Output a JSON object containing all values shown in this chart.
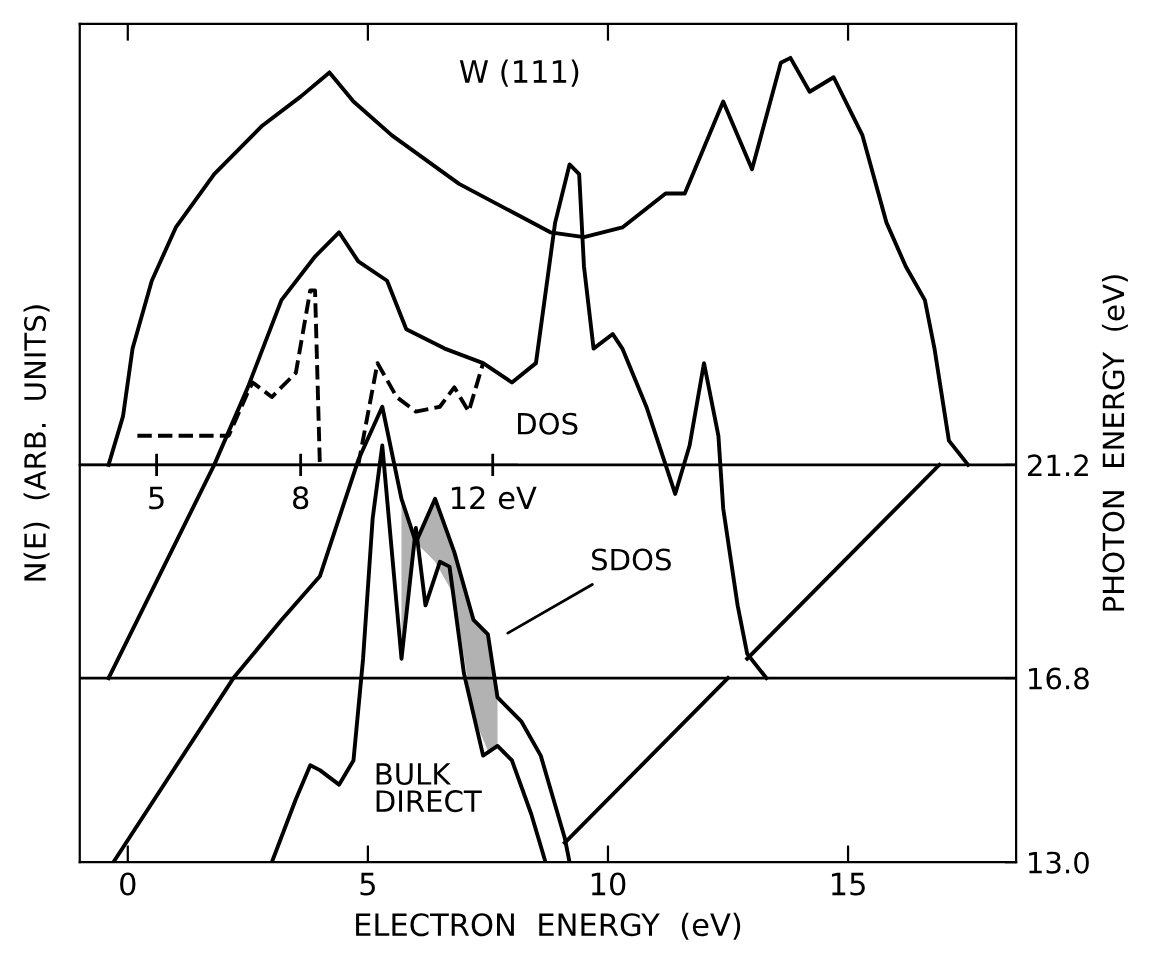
{
  "chart_data": {
    "type": "line",
    "title": "W (111)",
    "xlabel": "ELECTRON  ENERGY  (eV)",
    "ylabel": "PHOTON  ENERGY  (eV)",
    "xlim": [
      -1.0,
      18.5
    ],
    "xticks": [
      0,
      5,
      10,
      15
    ],
    "ylim": [
      13.0,
      30.3
    ],
    "yticks": [
      {
        "value": 13.0,
        "label": "13.0"
      },
      {
        "value": 16.8,
        "label": "16.8"
      },
      {
        "value": 21.2,
        "label": "21.2"
      }
    ],
    "x2lim": [
      3.4,
      12.5
    ],
    "x2ticks": [
      5,
      8,
      {
        "value": 12,
        "label": "12 eV"
      }
    ],
    "ref_lines": [
      {
        "axis": "y",
        "value": 16.8
      },
      {
        "axis": "y",
        "value": 21.2
      }
    ],
    "series": [
      {
        "color": "#000000",
        "x": [
          -0.4,
          -0.1,
          0.1,
          0.5,
          1.0,
          1.8,
          2.8,
          3.6,
          4.2,
          4.7,
          5.5,
          6.9,
          8.8,
          9.5,
          10.3,
          11.2,
          11.6,
          12.4,
          13.0,
          13.6,
          13.8,
          14.2,
          14.7,
          15.0,
          15.3,
          15.8,
          16.2,
          16.6,
          16.8,
          17.1,
          17.5
        ],
        "values": [
          21.2,
          22.2,
          23.6,
          25.0,
          26.1,
          27.2,
          28.2,
          28.8,
          29.3,
          28.7,
          28.0,
          27.0,
          26.0,
          25.9,
          26.1,
          26.8,
          26.8,
          28.7,
          27.3,
          29.5,
          29.6,
          28.9,
          29.2,
          28.6,
          28.0,
          26.2,
          25.3,
          24.6,
          23.6,
          21.7,
          21.2
        ]
      },
      {
        "color": "#000000",
        "x": [
          -0.4,
          1.8,
          2.5,
          3.2,
          3.9,
          4.4,
          4.8,
          5.4,
          5.8,
          6.6,
          7.4,
          8.0,
          8.5,
          8.9,
          9.2,
          9.4,
          9.5,
          9.7,
          10.1,
          10.3,
          10.8,
          11.4,
          11.7,
          12.0,
          12.3,
          12.4,
          12.7,
          12.9,
          13.3
        ],
        "values": [
          16.8,
          21.2,
          22.8,
          24.6,
          25.5,
          26.0,
          25.4,
          25.0,
          24.0,
          23.6,
          23.3,
          22.9,
          23.3,
          26.2,
          27.4,
          27.2,
          25.3,
          23.6,
          23.9,
          23.6,
          22.4,
          20.6,
          21.6,
          23.3,
          21.8,
          20.3,
          18.3,
          17.3,
          16.8
        ]
      },
      {
        "color": "#000000",
        "x": [
          -0.3,
          2.2,
          3.2,
          4.0,
          4.8,
          5.3,
          5.7,
          6.0,
          6.4,
          6.8,
          7.2,
          7.5,
          7.7,
          8.2,
          8.6,
          9.1,
          9.2
        ],
        "values": [
          13.0,
          16.8,
          18.0,
          18.9,
          21.3,
          22.4,
          20.5,
          19.6,
          20.5,
          19.4,
          18.0,
          17.7,
          16.4,
          15.9,
          15.2,
          13.5,
          13.0
        ],
        "lower": [
          null,
          null,
          null,
          null,
          null,
          null,
          17.2,
          19.6,
          19.2,
          18.5,
          16.0,
          15.3,
          15.4,
          null,
          null,
          null,
          null
        ],
        "upper": [
          null,
          null,
          null,
          null,
          null,
          null,
          20.5,
          19.6,
          20.5,
          19.4,
          18.0,
          17.7,
          16.4,
          null,
          null,
          null,
          null
        ]
      },
      {
        "color": "#000000",
        "x": [
          3.0,
          3.5,
          3.8,
          4.0,
          4.4,
          4.7,
          4.9,
          5.1,
          5.3,
          5.7,
          6.0,
          6.2,
          6.5,
          6.7,
          7.0,
          7.4,
          7.7,
          8.0,
          8.4,
          8.7
        ],
        "values": [
          13.0,
          14.3,
          15.0,
          14.9,
          14.6,
          15.1,
          17.2,
          20.1,
          21.6,
          17.2,
          19.9,
          18.3,
          19.2,
          19.1,
          16.9,
          15.2,
          15.4,
          15.1,
          14.0,
          13.0
        ]
      },
      {
        "color": "#000000",
        "axis": "x2",
        "line_style": "dashed",
        "x": [
          4.6,
          6.5,
          6.9,
          7.0,
          7.4,
          7.9,
          8.2,
          8.3,
          8.4,
          8.8,
          9.2,
          9.6,
          10.0,
          10.4,
          10.9,
          11.2,
          11.5,
          11.8
        ],
        "values": [
          21.8,
          21.8,
          22.7,
          22.9,
          22.6,
          23.1,
          24.8,
          24.8,
          21.2,
          null,
          21.2,
          23.3,
          22.6,
          22.3,
          22.4,
          22.8,
          22.3,
          23.3
        ]
      },
      {
        "color": "#000000",
        "x": [
          9.1,
          12.5
        ],
        "values": [
          13.4,
          16.8
        ]
      },
      {
        "color": "#000000",
        "x": [
          12.9,
          16.9
        ],
        "values": [
          17.2,
          21.2
        ]
      }
    ],
    "annotations": [
      "N(E)  (ARB.  UNITS)",
      "DOS",
      "SDOS",
      "BULK\nDIRECT"
    ],
    "grid": false
  }
}
